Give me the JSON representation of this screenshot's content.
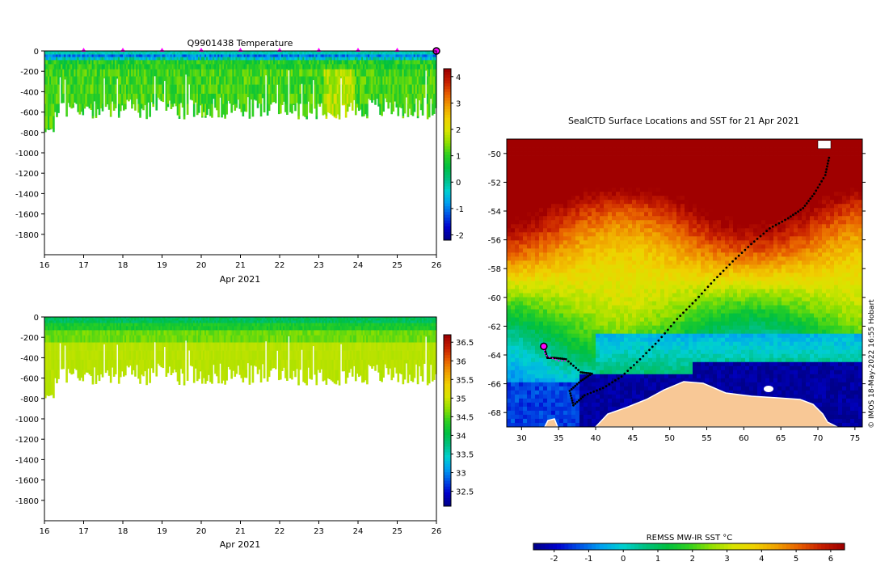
{
  "colors": {
    "colormap": [
      "#00008b",
      "#0000cd",
      "#0050e6",
      "#00a0f0",
      "#00d0d0",
      "#00c080",
      "#00c040",
      "#30d020",
      "#90e000",
      "#d8e400",
      "#f0d000",
      "#f0a000",
      "#e86000",
      "#c82000",
      "#a00000"
    ],
    "land": "#f8c896",
    "track": "#000000",
    "marker": "#ff00ff"
  },
  "chart_data": [
    {
      "id": "temperature",
      "type": "heatmap",
      "title": "Q9901438  Temperature",
      "xlabel": "Apr 2021",
      "x_ticks": [
        "16",
        "17",
        "18",
        "19",
        "20",
        "21",
        "22",
        "23",
        "24",
        "25",
        "26"
      ],
      "xlim": [
        16,
        26
      ],
      "ylim": [
        -2000,
        0
      ],
      "y_ticks": [
        "0",
        "-200",
        "-400",
        "-600",
        "-800",
        "-1000",
        "-1200",
        "-1400",
        "-1600",
        "-1800"
      ],
      "y_tick_values": [
        0,
        -200,
        -400,
        -600,
        -800,
        -1000,
        -1200,
        -1400,
        -1600,
        -1800
      ],
      "colorbar": {
        "range": [
          -2.2,
          4.3
        ],
        "ticks": [
          "-2",
          "-1",
          "0",
          "1",
          "2",
          "3",
          "4"
        ],
        "tick_values": [
          -2,
          -1,
          0,
          1,
          2,
          3,
          4
        ]
      },
      "surface_marker_days": [
        17,
        18,
        19,
        20,
        21,
        22,
        23,
        24,
        25
      ],
      "last_marker_day": 26
    },
    {
      "id": "salinity",
      "type": "heatmap",
      "title": "",
      "xlabel": "Apr 2021",
      "x_ticks": [
        "16",
        "17",
        "18",
        "19",
        "20",
        "21",
        "22",
        "23",
        "24",
        "25",
        "26"
      ],
      "xlim": [
        16,
        26
      ],
      "ylim": [
        -2000,
        0
      ],
      "y_ticks": [
        "0",
        "-200",
        "-400",
        "-600",
        "-800",
        "-1000",
        "-1200",
        "-1400",
        "-1600",
        "-1800"
      ],
      "y_tick_values": [
        0,
        -200,
        -400,
        -600,
        -800,
        -1000,
        -1200,
        -1400,
        -1600,
        -1800
      ],
      "colorbar": {
        "range": [
          32.1,
          36.7
        ],
        "ticks": [
          "32.5",
          "33",
          "33.5",
          "34",
          "34.5",
          "35",
          "35.5",
          "36",
          "36.5"
        ],
        "tick_values": [
          32.5,
          33,
          33.5,
          34,
          34.5,
          35,
          35.5,
          36,
          36.5
        ]
      }
    },
    {
      "id": "sst_map",
      "type": "heatmap",
      "title": "SealCTD Surface Locations and SST for 21 Apr 2021",
      "xlim": [
        28,
        76
      ],
      "ylim": [
        -69,
        -49
      ],
      "x_ticks": [
        "30",
        "35",
        "40",
        "45",
        "50",
        "55",
        "60",
        "65",
        "70",
        "75"
      ],
      "x_tick_values": [
        30,
        35,
        40,
        45,
        50,
        55,
        60,
        65,
        70,
        75
      ],
      "y_ticks": [
        "-50",
        "-52",
        "-54",
        "-56",
        "-58",
        "-60",
        "-62",
        "-64",
        "-66",
        "-68"
      ],
      "y_tick_values": [
        -50,
        -52,
        -54,
        -56,
        -58,
        -60,
        -62,
        -64,
        -66,
        -68
      ],
      "colorbar": {
        "label": "REMSS MW-IR SST °C",
        "range": [
          -2.6,
          6.4
        ],
        "ticks": [
          "-2",
          "-1",
          "0",
          "1",
          "2",
          "3",
          "4",
          "5",
          "6"
        ],
        "tick_values": [
          -2,
          -1,
          0,
          1,
          2,
          3,
          4,
          5,
          6
        ]
      },
      "track_lonlat": [
        [
          71.5,
          -50.3
        ],
        [
          71,
          -51.5
        ],
        [
          69.5,
          -52.8
        ],
        [
          68,
          -53.8
        ],
        [
          66,
          -54.5
        ],
        [
          63.5,
          -55.2
        ],
        [
          61,
          -56.3
        ],
        [
          58.5,
          -57.5
        ],
        [
          56,
          -58.8
        ],
        [
          53.5,
          -60.2
        ],
        [
          51,
          -61.5
        ],
        [
          48.5,
          -63
        ],
        [
          46,
          -64.3
        ],
        [
          43.5,
          -65.5
        ],
        [
          41,
          -66.3
        ],
        [
          38.5,
          -66.8
        ],
        [
          37,
          -67.5
        ],
        [
          36.5,
          -66.5
        ],
        [
          38,
          -65.8
        ],
        [
          39.5,
          -65.3
        ],
        [
          38,
          -65.2
        ],
        [
          36,
          -64.3
        ],
        [
          34.5,
          -64.2
        ],
        [
          33.5,
          -64.2
        ],
        [
          33,
          -63.4
        ]
      ],
      "highlight_track_lonlat": [
        [
          36,
          -64.4
        ],
        [
          35,
          -64.4
        ],
        [
          34,
          -64.2
        ],
        [
          33.2,
          -64
        ],
        [
          33,
          -63.4
        ]
      ],
      "start_point": [
        33,
        -63.4
      ],
      "credit": "© IMOS 18-May-2022 16:55 Hobart"
    }
  ]
}
